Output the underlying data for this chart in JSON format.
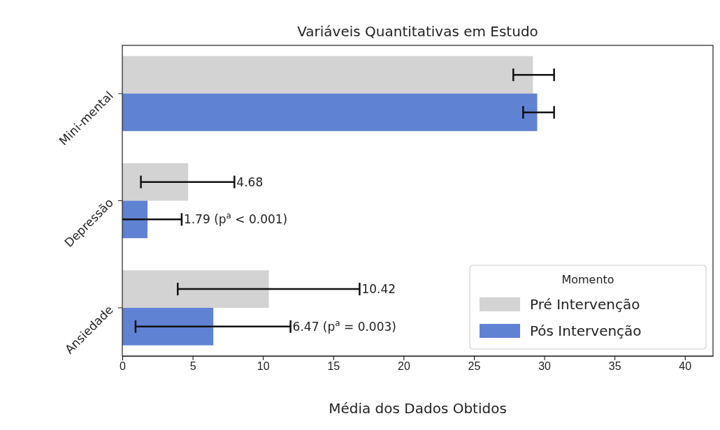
{
  "chart_data": {
    "type": "bar",
    "orientation": "horizontal",
    "title": "Variáveis Quantitativas em Estudo",
    "xlabel": "Média dos Dados Obtidos",
    "categories": [
      "Mini-mental",
      "Depressão",
      "Ansiedade"
    ],
    "series": [
      {
        "name": "Pré Intervenção",
        "color": "#d3d3d3",
        "values": [
          29.2,
          4.68,
          10.42
        ],
        "errors": [
          [
            27.8,
            30.7
          ],
          [
            1.32,
            7.97
          ],
          [
            3.94,
            16.87
          ]
        ]
      },
      {
        "name": "Pós Intervenção",
        "color": "#5f82d3",
        "values": [
          29.5,
          1.79,
          6.47
        ],
        "errors": [
          [
            28.5,
            30.7
          ],
          [
            0,
            4.22
          ],
          [
            0.94,
            11.96
          ]
        ]
      }
    ],
    "annotations": [
      "4.68",
      {
        "text": "1.79 (p$^{a}$ < 0.001)",
        "x": 4.22,
        "y": "Depressão"
      },
      "10.42",
      {
        "text": "6.47 (p$^{a}$ = 0.003)",
        "x": 11.96,
        "y": "Ansiedade"
      }
    ],
    "xlim": [
      0,
      42
    ],
    "xticks": [
      0,
      5,
      10,
      15,
      20,
      25,
      30,
      35,
      40
    ],
    "legend": "bottom right",
    "legend_title": "Momento",
    "grid": false
  }
}
